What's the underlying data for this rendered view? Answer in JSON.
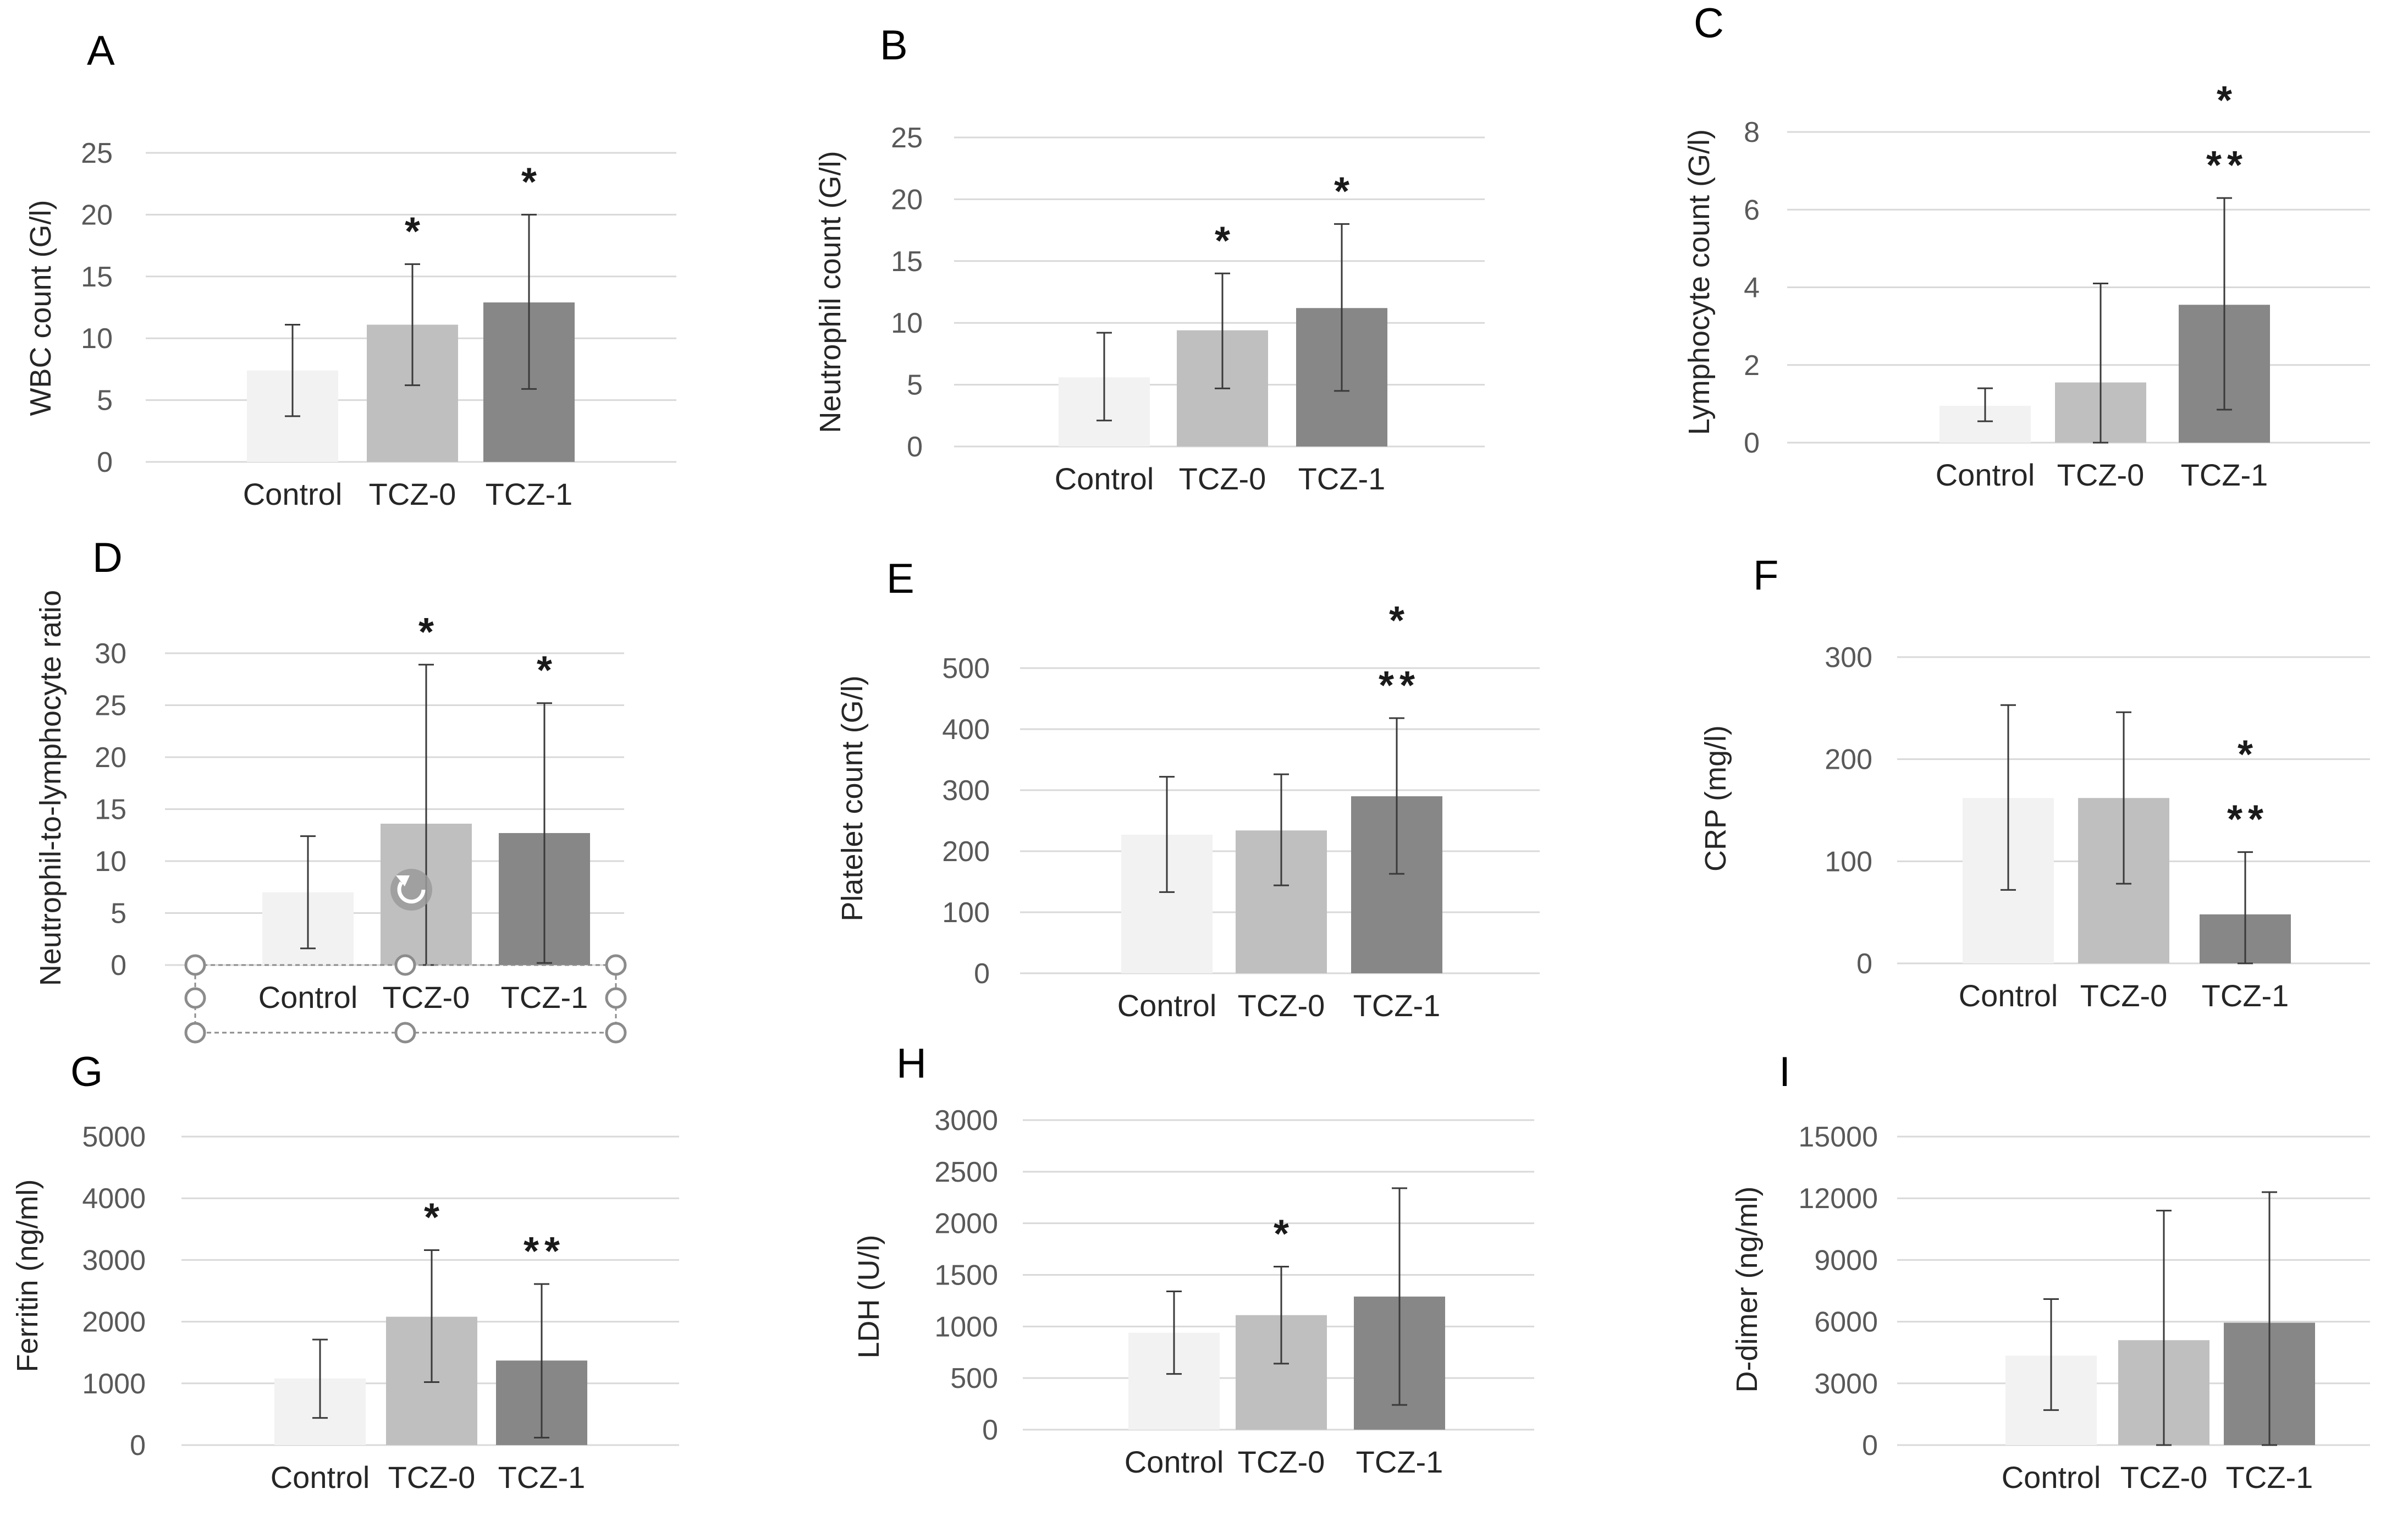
{
  "chart_data": [
    {
      "panel": "A",
      "type": "bar",
      "ylabel": "WBC count (G/l)",
      "categories": [
        "Control",
        "TCZ-0",
        "TCZ-1"
      ],
      "ylim": [
        0,
        25
      ],
      "yticks": [
        0,
        5,
        10,
        15,
        20,
        25
      ],
      "values": [
        7.4,
        11.1,
        12.9
      ],
      "error_high": [
        11.1,
        16.0,
        20.0
      ],
      "error_low": [
        3.7,
        6.2,
        5.9
      ],
      "annotations": [
        "",
        "*",
        "*"
      ],
      "grid": true
    },
    {
      "panel": "B",
      "type": "bar",
      "ylabel": "Neutrophil count (G/l)",
      "categories": [
        "Control",
        "TCZ-0",
        "TCZ-1"
      ],
      "ylim": [
        0,
        25
      ],
      "yticks": [
        0,
        5,
        10,
        15,
        20,
        25
      ],
      "values": [
        5.6,
        9.4,
        11.2
      ],
      "error_high": [
        9.2,
        14.0,
        18.0
      ],
      "error_low": [
        2.1,
        4.7,
        4.5
      ],
      "annotations": [
        "",
        "*",
        "*"
      ],
      "grid": true
    },
    {
      "panel": "C",
      "type": "bar",
      "ylabel": "Lymphocyte  count (G/l)",
      "categories": [
        "Control",
        "TCZ-0",
        "TCZ-1"
      ],
      "ylim": [
        0,
        8
      ],
      "yticks": [
        0,
        2,
        4,
        6,
        8
      ],
      "values": [
        0.95,
        1.55,
        3.55
      ],
      "error_high": [
        1.4,
        4.1,
        6.3
      ],
      "error_low": [
        0.55,
        0,
        0.85
      ],
      "annotations": [
        "",
        "",
        "*\n**"
      ],
      "grid": true
    },
    {
      "panel": "D",
      "type": "bar",
      "ylabel": "Neutrophil-to-lymphocyte ratio",
      "categories": [
        "Control",
        "TCZ-0",
        "TCZ-1"
      ],
      "ylim": [
        0,
        30
      ],
      "yticks": [
        0,
        5,
        10,
        15,
        20,
        25,
        30
      ],
      "values": [
        7.0,
        13.6,
        12.7
      ],
      "error_high": [
        12.4,
        28.9,
        25.2
      ],
      "error_low": [
        1.6,
        0,
        0.2
      ],
      "annotations": [
        "",
        "*",
        "*"
      ],
      "grid": true
    },
    {
      "panel": "E",
      "type": "bar",
      "ylabel": "Platelet count (G/l)",
      "categories": [
        "Control",
        "TCZ-0",
        "TCZ-1"
      ],
      "ylim": [
        0,
        500
      ],
      "yticks": [
        0,
        100,
        200,
        300,
        400,
        500
      ],
      "values": [
        227,
        234,
        290
      ],
      "error_high": [
        322,
        326,
        418
      ],
      "error_low": [
        133,
        144,
        163
      ],
      "annotations": [
        "",
        "",
        "*\n**"
      ],
      "grid": true
    },
    {
      "panel": "F",
      "type": "bar",
      "ylabel": "CRP (mg/l)",
      "categories": [
        "Control",
        "TCZ-0",
        "TCZ-1"
      ],
      "ylim": [
        0,
        300
      ],
      "yticks": [
        0,
        100,
        200,
        300
      ],
      "values": [
        162,
        162,
        48
      ],
      "error_high": [
        253,
        246,
        109
      ],
      "error_low": [
        72,
        78,
        0
      ],
      "annotations": [
        "",
        "",
        "*\n**"
      ],
      "grid": true
    },
    {
      "panel": "G",
      "type": "bar",
      "ylabel": "Ferritin (ng/ml)",
      "categories": [
        "Control",
        "TCZ-0",
        "TCZ-1"
      ],
      "ylim": [
        0,
        5000
      ],
      "yticks": [
        0,
        1000,
        2000,
        3000,
        4000,
        5000
      ],
      "values": [
        1080,
        2080,
        1370
      ],
      "error_high": [
        1710,
        3160,
        2610
      ],
      "error_low": [
        440,
        1020,
        120
      ],
      "annotations": [
        "",
        "*",
        "**"
      ],
      "grid": true
    },
    {
      "panel": "H",
      "type": "bar",
      "ylabel": "LDH (U/l)",
      "categories": [
        "Control",
        "TCZ-0",
        "TCZ-1"
      ],
      "ylim": [
        0,
        3000
      ],
      "yticks": [
        0,
        500,
        1000,
        1500,
        2000,
        2500,
        3000
      ],
      "values": [
        940,
        1110,
        1290
      ],
      "error_high": [
        1340,
        1580,
        2340
      ],
      "error_low": [
        540,
        640,
        240
      ],
      "annotations": [
        "",
        "*",
        ""
      ],
      "grid": true
    },
    {
      "panel": "I",
      "type": "bar",
      "ylabel": "D-dimer (ng/ml)",
      "categories": [
        "Control",
        "TCZ-0",
        "TCZ-1"
      ],
      "ylim": [
        0,
        15000
      ],
      "yticks": [
        0,
        3000,
        6000,
        9000,
        12000,
        15000
      ],
      "values": [
        4350,
        5100,
        5950
      ],
      "error_high": [
        7100,
        11400,
        12300
      ],
      "error_low": [
        1700,
        0,
        0
      ],
      "annotations": [
        "",
        "",
        ""
      ],
      "grid": true
    }
  ],
  "colors": {
    "bars": [
      "#f2f2f2",
      "#bfbfbf",
      "#878787"
    ],
    "grid": "#d9d9d9",
    "error": "#3a3a3a"
  },
  "icons": {
    "selection_handles_panel": "D",
    "rotate_handle": "rotate-icon"
  }
}
